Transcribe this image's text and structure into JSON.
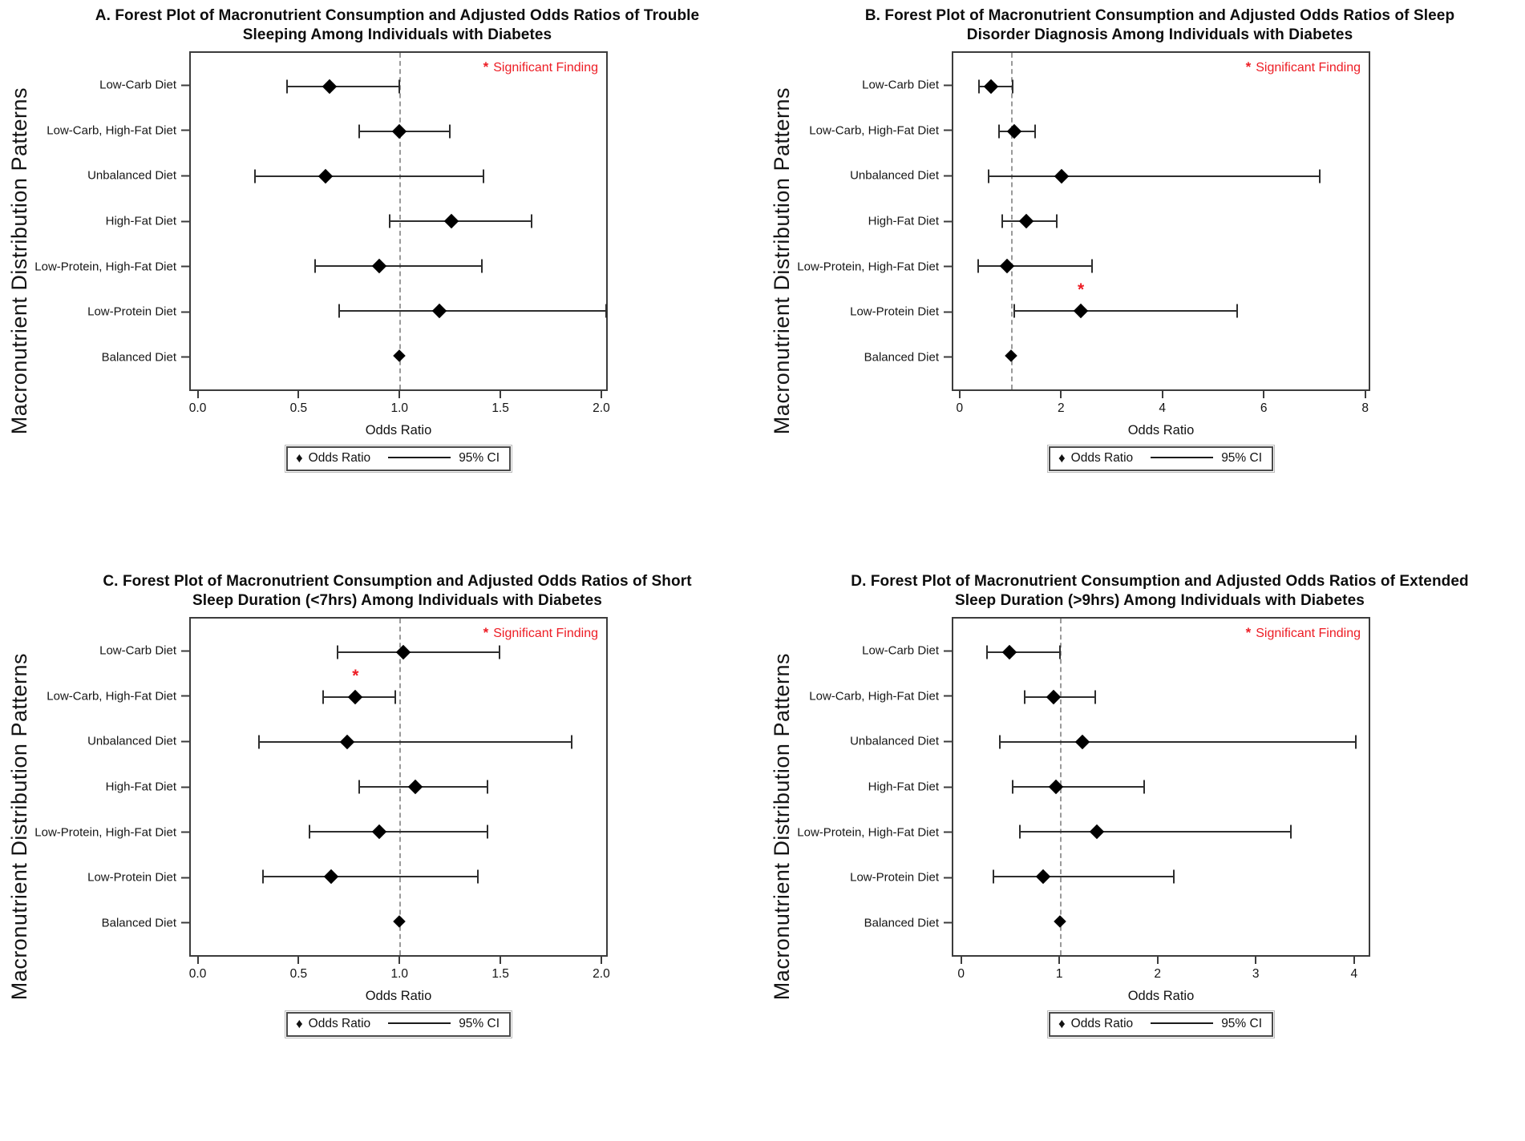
{
  "figure": {
    "y_axis_label": "Macronutrient Distribution Patterns",
    "significant_marker": "*",
    "significant_label": "Significant Finding",
    "colors": {
      "significant": "#ed1c24",
      "marker": "#000000",
      "ref_line": "#9a9a9a",
      "axis": "#3c3c3c"
    },
    "legend": {
      "marker_symbol": "♦",
      "marker_label": "Odds Ratio",
      "line_label": "95% CI"
    }
  },
  "chart_data": [
    {
      "panel": "A",
      "type": "scatter",
      "subtype": "forest-plot",
      "title": "A. Forest Plot of Macronutrient Consumption and Adjusted Odds Ratios of Trouble Sleeping Among Individuals with Diabetes",
      "xlabel": "Odds Ratio",
      "ylabel": "Macronutrient Distribution Patterns",
      "ref_line": 1.0,
      "xlim": [
        -0.042,
        2.032
      ],
      "xticks": [
        {
          "v": 0.0,
          "label": "0.0"
        },
        {
          "v": 0.5,
          "label": "0.5"
        },
        {
          "v": 1.0,
          "label": "1.0"
        },
        {
          "v": 1.5,
          "label": "1.5"
        },
        {
          "v": 2.0,
          "label": "2.0"
        }
      ],
      "rows": [
        {
          "label": "Low-Carb Diet",
          "or": 0.65,
          "ci_low": 0.44,
          "ci_high": 1.0,
          "significant": false
        },
        {
          "label": "Low-Carb, High-Fat Diet",
          "or": 1.0,
          "ci_low": 0.8,
          "ci_high": 1.25,
          "significant": false
        },
        {
          "label": "Unbalanced Diet",
          "or": 0.63,
          "ci_low": 0.28,
          "ci_high": 1.42,
          "significant": false
        },
        {
          "label": "High-Fat Diet",
          "or": 1.26,
          "ci_low": 0.95,
          "ci_high": 1.66,
          "significant": false
        },
        {
          "label": "Low-Protein, High-Fat Diet",
          "or": 0.9,
          "ci_low": 0.58,
          "ci_high": 1.41,
          "significant": false
        },
        {
          "label": "Low-Protein Diet",
          "or": 1.2,
          "ci_low": 0.7,
          "ci_high": 2.03,
          "significant": false
        },
        {
          "label": "Balanced Diet",
          "or": 1.0,
          "ci_low": null,
          "ci_high": null,
          "significant": false,
          "reference": true
        }
      ]
    },
    {
      "panel": "B",
      "type": "scatter",
      "subtype": "forest-plot",
      "title": "B. Forest Plot of Macronutrient Consumption and Adjusted Odds Ratios of Sleep Disorder Diagnosis Among Individuals with Diabetes",
      "xlabel": "Odds Ratio",
      "ylabel": "Macronutrient Distribution Patterns",
      "ref_line": 1.0,
      "xlim": [
        -0.155,
        8.1
      ],
      "xticks": [
        {
          "v": 0,
          "label": "0"
        },
        {
          "v": 2,
          "label": "2"
        },
        {
          "v": 4,
          "label": "4"
        },
        {
          "v": 6,
          "label": "6"
        },
        {
          "v": 8,
          "label": "8"
        }
      ],
      "rows": [
        {
          "label": "Low-Carb Diet",
          "or": 0.6,
          "ci_low": 0.35,
          "ci_high": 1.02,
          "significant": false
        },
        {
          "label": "Low-Carb, High-Fat Diet",
          "or": 1.05,
          "ci_low": 0.75,
          "ci_high": 1.47,
          "significant": false
        },
        {
          "label": "Unbalanced Diet",
          "or": 2.0,
          "ci_low": 0.55,
          "ci_high": 7.12,
          "significant": false
        },
        {
          "label": "High-Fat Diet",
          "or": 1.3,
          "ci_low": 0.82,
          "ci_high": 1.9,
          "significant": false
        },
        {
          "label": "Low-Protein, High-Fat Diet",
          "or": 0.92,
          "ci_low": 0.34,
          "ci_high": 2.6,
          "significant": false
        },
        {
          "label": "Low-Protein Diet",
          "or": 2.38,
          "ci_low": 1.05,
          "ci_high": 5.48,
          "significant": true
        },
        {
          "label": "Balanced Diet",
          "or": 1.0,
          "ci_low": null,
          "ci_high": null,
          "significant": false,
          "reference": true
        }
      ]
    },
    {
      "panel": "C",
      "type": "scatter",
      "subtype": "forest-plot",
      "title": "C. Forest Plot of Macronutrient Consumption and Adjusted Odds Ratios of Short Sleep Duration (<7hrs) Among Individuals with Diabetes",
      "xlabel": "Odds Ratio",
      "ylabel": "Macronutrient Distribution Patterns",
      "ref_line": 1.0,
      "xlim": [
        -0.042,
        2.032
      ],
      "xticks": [
        {
          "v": 0.0,
          "label": "0.0"
        },
        {
          "v": 0.5,
          "label": "0.5"
        },
        {
          "v": 1.0,
          "label": "1.0"
        },
        {
          "v": 1.5,
          "label": "1.5"
        },
        {
          "v": 2.0,
          "label": "2.0"
        }
      ],
      "rows": [
        {
          "label": "Low-Carb Diet",
          "or": 1.02,
          "ci_low": 0.69,
          "ci_high": 1.5,
          "significant": false
        },
        {
          "label": "Low-Carb, High-Fat Diet",
          "or": 0.78,
          "ci_low": 0.62,
          "ci_high": 0.98,
          "significant": true
        },
        {
          "label": "Unbalanced Diet",
          "or": 0.74,
          "ci_low": 0.3,
          "ci_high": 1.86,
          "significant": false
        },
        {
          "label": "High-Fat Diet",
          "or": 1.08,
          "ci_low": 0.8,
          "ci_high": 1.44,
          "significant": false
        },
        {
          "label": "Low-Protein, High-Fat Diet",
          "or": 0.9,
          "ci_low": 0.55,
          "ci_high": 1.44,
          "significant": false
        },
        {
          "label": "Low-Protein Diet",
          "or": 0.66,
          "ci_low": 0.32,
          "ci_high": 1.39,
          "significant": false
        },
        {
          "label": "Balanced Diet",
          "or": 1.0,
          "ci_low": null,
          "ci_high": null,
          "significant": false,
          "reference": true
        }
      ]
    },
    {
      "panel": "D",
      "type": "scatter",
      "subtype": "forest-plot",
      "title": "D. Forest Plot of Macronutrient Consumption and Adjusted Odds Ratios of Extended Sleep Duration (>9hrs) Among Individuals with Diabetes",
      "xlabel": "Odds Ratio",
      "ylabel": "Macronutrient Distribution Patterns",
      "ref_line": 1.0,
      "xlim": [
        -0.095,
        4.165
      ],
      "xticks": [
        {
          "v": 0,
          "label": "0"
        },
        {
          "v": 1,
          "label": "1"
        },
        {
          "v": 2,
          "label": "2"
        },
        {
          "v": 3,
          "label": "3"
        },
        {
          "v": 4,
          "label": "4"
        }
      ],
      "rows": [
        {
          "label": "Low-Carb Diet",
          "or": 0.48,
          "ci_low": 0.25,
          "ci_high": 1.0,
          "significant": false
        },
        {
          "label": "Low-Carb, High-Fat Diet",
          "or": 0.93,
          "ci_low": 0.64,
          "ci_high": 1.36,
          "significant": false
        },
        {
          "label": "Unbalanced Diet",
          "or": 1.23,
          "ci_low": 0.38,
          "ci_high": 4.03,
          "significant": false
        },
        {
          "label": "High-Fat Diet",
          "or": 0.96,
          "ci_low": 0.51,
          "ci_high": 1.86,
          "significant": false
        },
        {
          "label": "Low-Protein, High-Fat Diet",
          "or": 1.38,
          "ci_low": 0.59,
          "ci_high": 3.37,
          "significant": false
        },
        {
          "label": "Low-Protein Diet",
          "or": 0.83,
          "ci_low": 0.32,
          "ci_high": 2.17,
          "significant": false
        },
        {
          "label": "Balanced Diet",
          "or": 1.0,
          "ci_low": null,
          "ci_high": null,
          "significant": false,
          "reference": true
        }
      ]
    }
  ]
}
